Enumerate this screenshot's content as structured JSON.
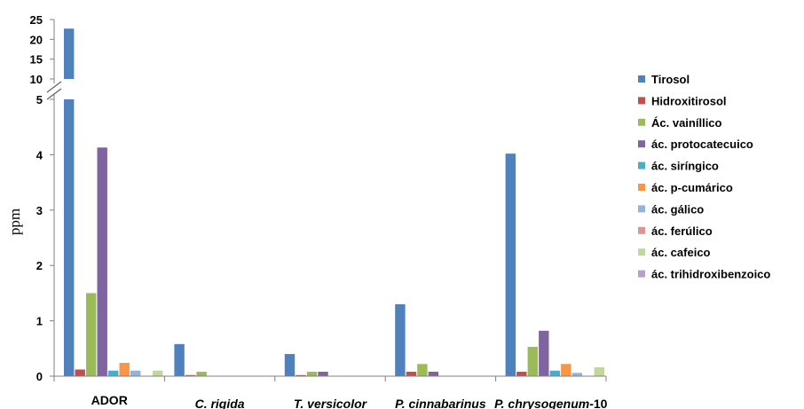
{
  "chart_data": {
    "type": "bar",
    "title": "",
    "xlabel": "",
    "ylabel": "ppm",
    "axis_break": true,
    "ylim_lower": [
      0,
      5
    ],
    "yticks_lower": [
      "0",
      "1",
      "2",
      "3",
      "4",
      "5"
    ],
    "ylim_upper": [
      10,
      25
    ],
    "yticks_upper": [
      "10",
      "15",
      "20",
      "25"
    ],
    "grid": false,
    "legend_position": "right",
    "categories": [
      {
        "prefix": "",
        "name": "ADOR",
        "suffix": "",
        "italic": false
      },
      {
        "prefix": "",
        "name": "C. rigida",
        "suffix": "",
        "italic": true
      },
      {
        "prefix": "",
        "name": "T. versicolor",
        "suffix": "",
        "italic": true
      },
      {
        "prefix": "",
        "name": "P. cinnabarinus",
        "suffix": "",
        "italic": true
      },
      {
        "prefix": "",
        "name": "P. chrysogenum",
        "suffix": "-10",
        "italic": true
      }
    ],
    "series": [
      {
        "name": "Tirosol",
        "color": "#4F81BD",
        "values": [
          22.7,
          0.58,
          0.4,
          1.3,
          4.02
        ]
      },
      {
        "name": "Hidroxitirosol",
        "color": "#C0504D",
        "values": [
          0.12,
          0.02,
          0.02,
          0.08,
          0.08
        ]
      },
      {
        "name": "Ác. vainíllico",
        "color": "#9BBB59",
        "values": [
          1.5,
          0.08,
          0.08,
          0.22,
          0.53
        ]
      },
      {
        "name": "ác. protocatecuico",
        "color": "#8064A2",
        "values": [
          4.13,
          0.0,
          0.08,
          0.08,
          0.82
        ]
      },
      {
        "name": "ác. siríngico",
        "color": "#4BACC6",
        "values": [
          0.1,
          0.0,
          0.0,
          0.0,
          0.1
        ]
      },
      {
        "name": "ác. p-cumárico",
        "color": "#F79646",
        "values": [
          0.24,
          0.0,
          0.0,
          0.0,
          0.22
        ]
      },
      {
        "name": "ác. gálico",
        "color": "#95B3D7",
        "values": [
          0.1,
          0.0,
          0.0,
          0.0,
          0.06
        ]
      },
      {
        "name": "ác. ferúlico",
        "color": "#D99694",
        "values": [
          0.0,
          0.0,
          0.0,
          0.0,
          0.0
        ]
      },
      {
        "name": "ác. cafeico",
        "color": "#C3D69B",
        "values": [
          0.1,
          0.0,
          0.0,
          0.0,
          0.16
        ]
      },
      {
        "name": "ác. trihidroxibenzoico",
        "color": "#B3A2C7",
        "values": [
          0.0,
          0.0,
          0.0,
          0.0,
          0.0
        ]
      }
    ]
  }
}
